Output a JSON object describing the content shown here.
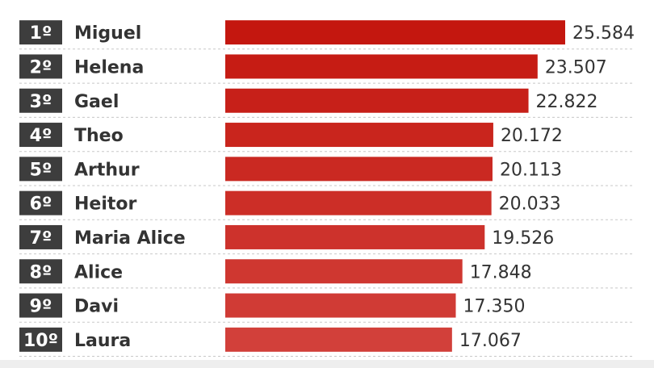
{
  "chart_data": {
    "type": "bar",
    "orientation": "horizontal",
    "ranks": [
      "1º",
      "2º",
      "3º",
      "4º",
      "5º",
      "6º",
      "7º",
      "8º",
      "9º",
      "10º"
    ],
    "categories": [
      "Miguel",
      "Helena",
      "Gael",
      "Theo",
      "Arthur",
      "Heitor",
      "Maria Alice",
      "Alice",
      "Davi",
      "Laura"
    ],
    "values": [
      25584,
      23507,
      22822,
      20172,
      20113,
      20033,
      19526,
      17848,
      17350,
      17067
    ],
    "value_labels": [
      "25.584",
      "23.507",
      "22.822",
      "20.172",
      "20.113",
      "20.033",
      "19.526",
      "17.848",
      "17.350",
      "17.067"
    ],
    "title": "",
    "xlabel": "",
    "ylabel": "",
    "xlim": [
      0,
      25584
    ],
    "grid": false,
    "colors": {
      "bar_top": "#c4170f",
      "bar_bottom": "#d2403a",
      "rank_badge": "#3d3d3d",
      "rank_text": "#ffffff",
      "label_text": "#333333",
      "separator": "#c8c8c8"
    }
  }
}
